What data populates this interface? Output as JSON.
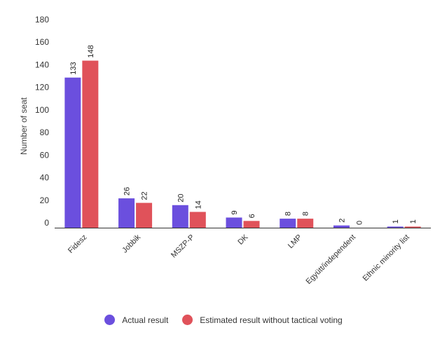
{
  "chart_data": {
    "type": "bar",
    "title": "",
    "ylabel": "Number of seat",
    "xlabel": "",
    "ylim": [
      0,
      180
    ],
    "yticks": [
      0,
      20,
      40,
      60,
      80,
      100,
      120,
      140,
      160,
      180
    ],
    "categories": [
      "Fidesz",
      "Jobbik",
      "MSZP-P",
      "DK",
      "LMP",
      "Együtt/independent",
      "Ethnic minority list"
    ],
    "series": [
      {
        "name": "Actual result",
        "color": "#6b4fde",
        "values": [
          133,
          26,
          20,
          9,
          8,
          2,
          1
        ]
      },
      {
        "name": "Estimated result without tactical voting",
        "color": "#e0525a",
        "values": [
          148,
          22,
          14,
          6,
          8,
          0,
          1
        ]
      }
    ],
    "grid": false,
    "legend_position": "bottom"
  }
}
